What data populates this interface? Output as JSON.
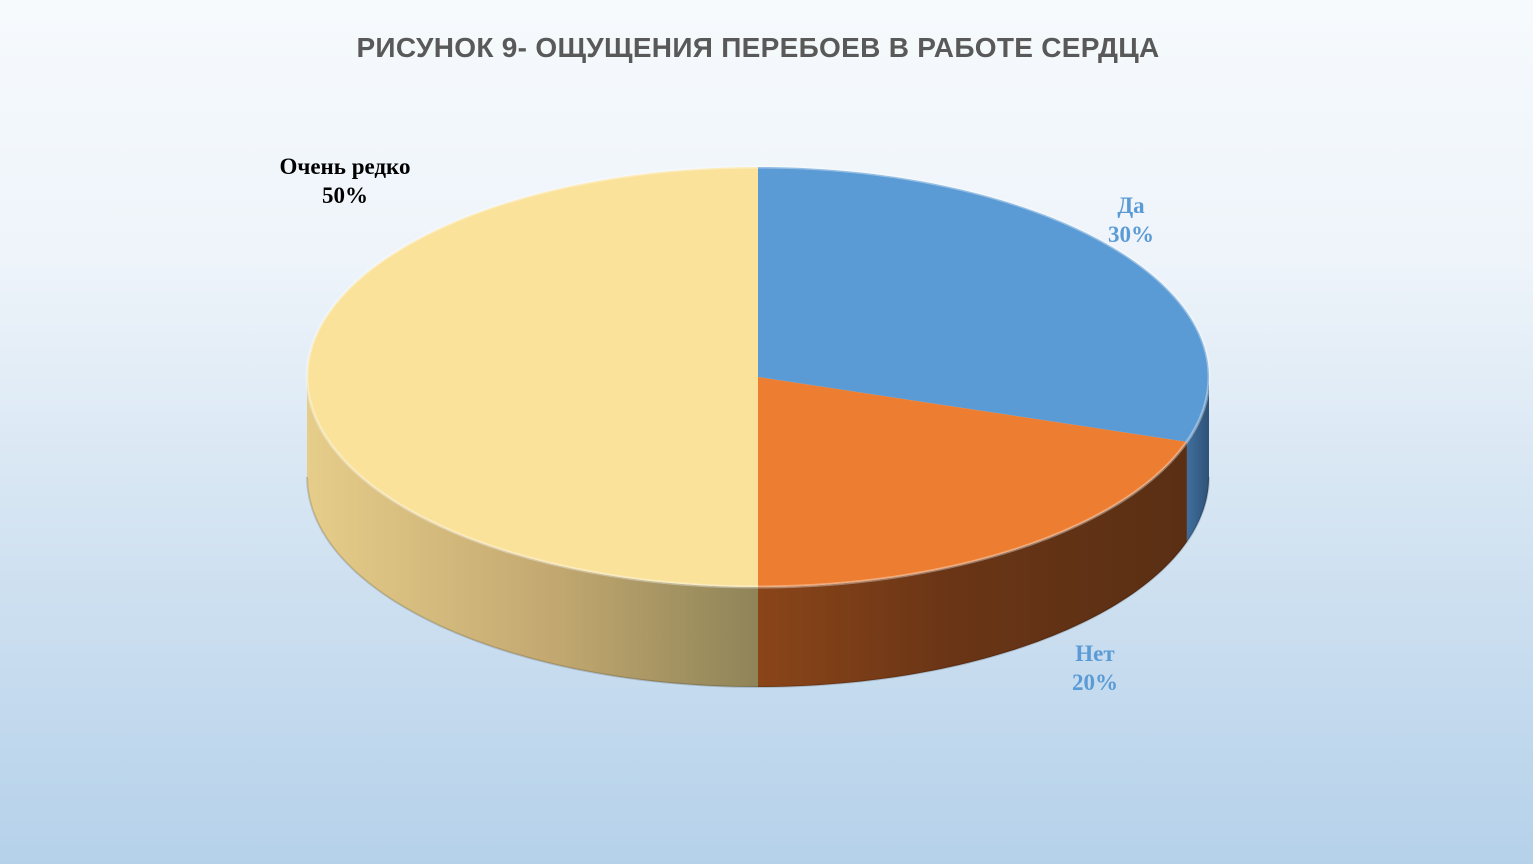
{
  "chart_data": {
    "type": "pie",
    "title": "РИСУНОК 9- ОЩУЩЕНИЯ ПЕРЕБОЕВ В РАБОТЕ СЕРДЦА",
    "three_d": true,
    "legend": "none",
    "slices": [
      {
        "label": "Да",
        "value": 30,
        "value_label": "30%",
        "color": "#5b9bd5",
        "label_color": "#5b9bd5"
      },
      {
        "label": "Нет",
        "value": 20,
        "value_label": "20%",
        "color": "#ed7d31",
        "label_color": "#5b9bd5"
      },
      {
        "label": "Очень редко",
        "value": 50,
        "value_label": "50%",
        "color": "#fbe29a",
        "label_color": "#000000"
      }
    ]
  }
}
